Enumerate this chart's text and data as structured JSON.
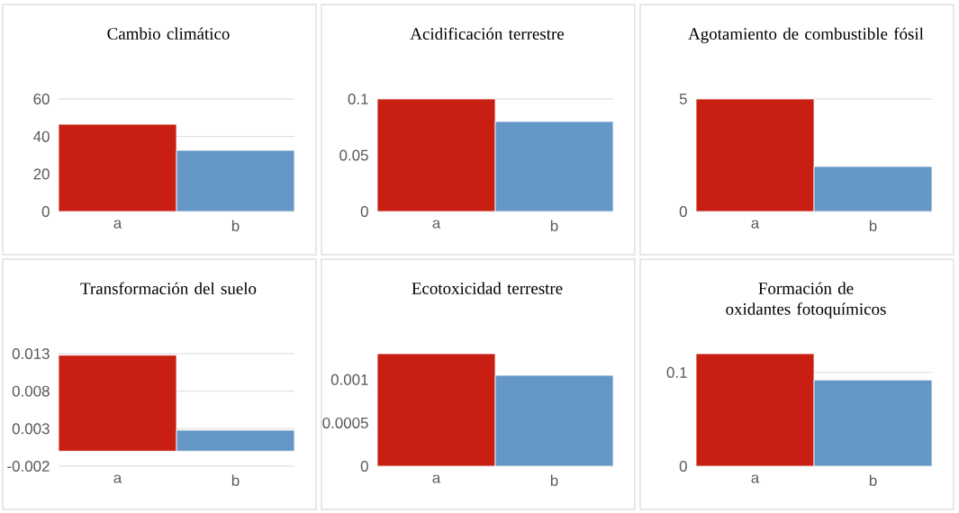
{
  "chart_data": [
    {
      "type": "bar",
      "title": "Cambio climático",
      "categories": [
        "a",
        "b"
      ],
      "values": [
        46.5,
        32.6
      ],
      "colors": [
        "#c91f12",
        "#6497c6"
      ],
      "ylim": [
        0,
        60
      ],
      "yticks": [
        0,
        20,
        40,
        60
      ],
      "grid": "y"
    },
    {
      "type": "bar",
      "title": "Acidificación terrestre",
      "categories": [
        "a",
        "b"
      ],
      "values": [
        0.1,
        0.08
      ],
      "colors": [
        "#c91f12",
        "#6497c6"
      ],
      "ylim": [
        0,
        0.1
      ],
      "yticks": [
        0,
        0.05,
        0.1
      ],
      "grid": "y"
    },
    {
      "type": "bar",
      "title": "Agotamiento de combustible fósil",
      "categories": [
        "a",
        "b"
      ],
      "values": [
        5,
        2
      ],
      "colors": [
        "#c91f12",
        "#6497c6"
      ],
      "ylim": [
        0,
        5
      ],
      "yticks": [
        0,
        5
      ],
      "grid": "y"
    },
    {
      "type": "bar",
      "title": "Transformación del suelo",
      "categories": [
        "a",
        "b"
      ],
      "values": [
        0.0128,
        0.0028
      ],
      "colors": [
        "#c91f12",
        "#6497c6"
      ],
      "ylim": [
        -0.002,
        0.013
      ],
      "yticks": [
        -0.002,
        0.003,
        0.008,
        0.013
      ],
      "grid": "y"
    },
    {
      "type": "bar",
      "title": "Ecotoxicidad terrestre",
      "categories": [
        "a",
        "b"
      ],
      "values": [
        0.0013,
        0.00105
      ],
      "colors": [
        "#c91f12",
        "#6497c6"
      ],
      "ylim": [
        0,
        0.0013
      ],
      "yticks": [
        0,
        0.0005,
        0.001
      ],
      "grid": "y"
    },
    {
      "type": "bar",
      "title": "Formación de oxidantes fotoquímicos",
      "categories": [
        "a",
        "b"
      ],
      "values": [
        0.12,
        0.092
      ],
      "colors": [
        "#c91f12",
        "#6497c6"
      ],
      "ylim": [
        0,
        0.12
      ],
      "yticks": [
        0,
        0.1
      ],
      "grid": "y"
    }
  ]
}
